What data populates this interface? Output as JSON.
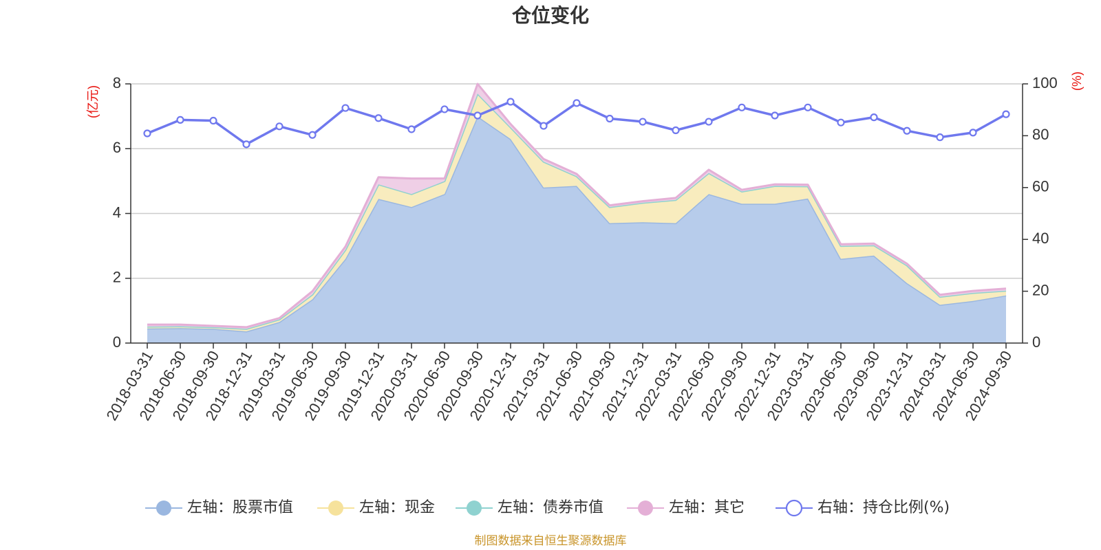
{
  "chart_data": {
    "type": "area",
    "title": "仓位变化",
    "source_note": "制图数据来自恒生聚源数据库",
    "y_left_label": "(亿元)",
    "y_right_label": "(%)",
    "y_left_range": [
      0,
      8
    ],
    "y_left_ticks": [
      "0",
      "2",
      "4",
      "6",
      "8"
    ],
    "y_right_range": [
      0,
      100
    ],
    "y_right_ticks": [
      "0",
      "20",
      "40",
      "60",
      "80",
      "100"
    ],
    "grid": true,
    "legend_position": "bottom",
    "categories": [
      "2018-03-31",
      "2018-06-30",
      "2018-09-30",
      "2018-12-31",
      "2019-03-31",
      "2019-06-30",
      "2019-09-30",
      "2019-12-31",
      "2020-03-31",
      "2020-06-30",
      "2020-09-30",
      "2020-12-31",
      "2021-03-31",
      "2021-06-30",
      "2021-09-30",
      "2021-12-31",
      "2022-03-31",
      "2022-06-30",
      "2022-09-30",
      "2022-12-31",
      "2023-03-31",
      "2023-06-30",
      "2023-09-30",
      "2023-12-31",
      "2024-03-31",
      "2024-06-30",
      "2024-09-30"
    ],
    "series": [
      {
        "name": "左轴：股票市值",
        "axis": "left",
        "kind": "stacked-area",
        "color": "#9ab7e0",
        "fill": "#b7cceb",
        "values": [
          0.45,
          0.46,
          0.44,
          0.36,
          0.65,
          1.35,
          2.6,
          4.45,
          4.2,
          4.6,
          7.0,
          6.3,
          4.8,
          4.85,
          3.7,
          3.73,
          3.7,
          4.6,
          4.3,
          4.3,
          4.46,
          2.6,
          2.7,
          1.85,
          1.18,
          1.3,
          1.47
        ]
      },
      {
        "name": "左轴：现金",
        "axis": "left",
        "kind": "stacked-area",
        "color": "#f6e29c",
        "fill": "#f8ecbe",
        "values": [
          0.06,
          0.06,
          0.05,
          0.08,
          0.08,
          0.15,
          0.28,
          0.45,
          0.4,
          0.4,
          0.7,
          0.36,
          0.8,
          0.3,
          0.5,
          0.6,
          0.72,
          0.65,
          0.38,
          0.55,
          0.38,
          0.4,
          0.32,
          0.55,
          0.25,
          0.25,
          0.15
        ]
      },
      {
        "name": "左轴：债券市值",
        "axis": "left",
        "kind": "stacked-area",
        "color": "#8fd2d0",
        "fill": "#b9e3e2",
        "values": [
          0,
          0,
          0,
          0,
          0,
          0,
          0,
          0,
          0,
          0,
          0,
          0,
          0,
          0,
          0,
          0,
          0,
          0,
          0,
          0,
          0,
          0,
          0,
          0,
          0,
          0,
          0
        ]
      },
      {
        "name": "左轴：其它",
        "axis": "left",
        "kind": "stacked-area",
        "color": "#e4afd6",
        "fill": "#efcfe6",
        "values": [
          0.06,
          0.05,
          0.04,
          0.05,
          0.04,
          0.1,
          0.1,
          0.22,
          0.48,
          0.08,
          0.3,
          0.1,
          0.08,
          0.07,
          0.05,
          0.05,
          0.06,
          0.1,
          0.05,
          0.05,
          0.05,
          0.05,
          0.05,
          0.05,
          0.06,
          0.06,
          0.06
        ]
      },
      {
        "name": "右轴：持仓比例(%)",
        "axis": "right",
        "kind": "line",
        "color": "#6f78ee",
        "values": [
          80.9,
          86.1,
          85.8,
          76.7,
          83.6,
          80.3,
          90.7,
          86.8,
          82.5,
          90.2,
          87.8,
          93.1,
          83.8,
          92.6,
          86.6,
          85.4,
          82.1,
          85.4,
          90.9,
          87.8,
          90.9,
          85.1,
          87.1,
          81.9,
          79.4,
          81.2,
          88.3
        ]
      }
    ]
  }
}
